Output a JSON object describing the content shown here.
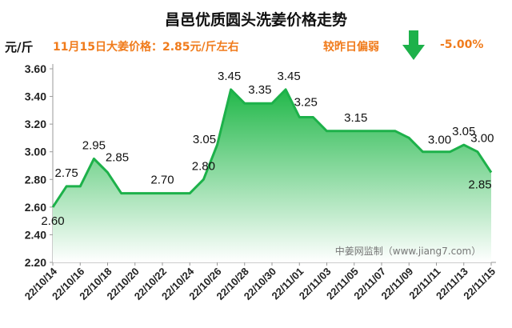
{
  "header": {
    "title": "昌邑优质圆头洗姜价格走势",
    "unit": "元/斤",
    "price_text": "11月15日大姜价格：2.85元/斤左右",
    "trend_text": "较昨日偏弱",
    "change_text": "-5.00%",
    "trend_icon": "down-arrow-icon",
    "accent_color": "#f07b1b",
    "arrow_color": "#1db14a"
  },
  "watermark": "中姜网监制（www.jiang7.com）",
  "chart_data": {
    "type": "area",
    "y_ticks": [
      "3.60",
      "3.40",
      "3.20",
      "3.00",
      "2.80",
      "2.60",
      "2.40",
      "2.20"
    ],
    "ylim": [
      2.2,
      3.6
    ],
    "x_ticks": [
      "22/10/14",
      "22/10/16",
      "22/10/18",
      "22/10/20",
      "22/10/22",
      "22/10/24",
      "22/10/26",
      "22/10/28",
      "22/10/30",
      "22/11/01",
      "22/11/03",
      "22/11/05",
      "22/11/07",
      "22/11/09",
      "22/11/11",
      "22/11/13",
      "22/11/15"
    ],
    "x": [
      "22/10/14",
      "22/10/15",
      "22/10/16",
      "22/10/17",
      "22/10/18",
      "22/10/19",
      "22/10/20",
      "22/10/21",
      "22/10/22",
      "22/10/23",
      "22/10/24",
      "22/10/25",
      "22/10/26",
      "22/10/27",
      "22/10/28",
      "22/10/29",
      "22/10/30",
      "22/10/31",
      "22/11/01",
      "22/11/02",
      "22/11/03",
      "22/11/04",
      "22/11/05",
      "22/11/06",
      "22/11/07",
      "22/11/08",
      "22/11/09",
      "22/11/10",
      "22/11/11",
      "22/11/12",
      "22/11/13",
      "22/11/14",
      "22/11/15"
    ],
    "values": [
      2.6,
      2.75,
      2.75,
      2.95,
      2.85,
      2.7,
      2.7,
      2.7,
      2.7,
      2.7,
      2.7,
      2.8,
      3.05,
      3.45,
      3.35,
      3.35,
      3.35,
      3.45,
      3.25,
      3.25,
      3.15,
      3.15,
      3.15,
      3.15,
      3.15,
      3.15,
      3.1,
      3.0,
      3.0,
      3.0,
      3.05,
      3.0,
      2.85
    ],
    "data_labels": [
      {
        "index": 0,
        "text": "2.60"
      },
      {
        "index": 1,
        "text": "2.75"
      },
      {
        "index": 3,
        "text": "2.95"
      },
      {
        "index": 4,
        "text": "2.85"
      },
      {
        "index": 8,
        "text": "2.70"
      },
      {
        "index": 11,
        "text": "2.80"
      },
      {
        "index": 12,
        "text": "3.05"
      },
      {
        "index": 13,
        "text": "3.45"
      },
      {
        "index": 15,
        "text": "3.35"
      },
      {
        "index": 17,
        "text": "3.45"
      },
      {
        "index": 18,
        "text": "3.25"
      },
      {
        "index": 22,
        "text": "3.15"
      },
      {
        "index": 28,
        "text": "3.00"
      },
      {
        "index": 30,
        "text": "3.05"
      },
      {
        "index": 31,
        "text": "3.00"
      },
      {
        "index": 32,
        "text": "2.85"
      }
    ],
    "line_color": "#1db14a",
    "fill_top_color": "#22b84a",
    "fill_bottom_color": "#ffffff",
    "grid": false
  }
}
